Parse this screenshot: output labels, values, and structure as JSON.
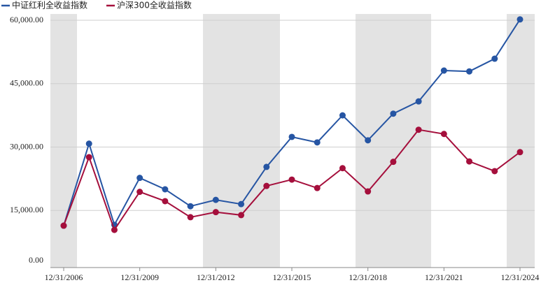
{
  "chart_data": {
    "type": "line",
    "categories": [
      "12/31/2006",
      null,
      null,
      "12/31/2009",
      null,
      null,
      "12/31/2012",
      null,
      null,
      "12/31/2015",
      null,
      null,
      "12/31/2018",
      null,
      null,
      "12/31/2021",
      null,
      null,
      "12/31/2024"
    ],
    "series": [
      {
        "name": "中证红利全收益指数",
        "color": "#2655a3",
        "values": [
          11400,
          30800,
          11600,
          22700,
          20000,
          16000,
          17500,
          16500,
          25300,
          32400,
          31100,
          37500,
          31600,
          37900,
          40800,
          48100,
          47900,
          50900,
          60200
        ]
      },
      {
        "name": "沪深300全收益指数",
        "color": "#a50f3c",
        "values": [
          11400,
          27600,
          10400,
          19400,
          17200,
          13400,
          14600,
          13900,
          20800,
          22300,
          20300,
          25000,
          19500,
          26500,
          34100,
          33100,
          26600,
          24300,
          28800
        ]
      }
    ],
    "ylim": [
      0,
      60000
    ],
    "yticks": [
      {
        "value": 0,
        "label": "0.00"
      },
      {
        "value": 15000,
        "label": "15,000.00"
      },
      {
        "value": 30000,
        "label": "30,000.00"
      },
      {
        "value": 45000,
        "label": "45,000.00"
      },
      {
        "value": 60000,
        "label": "60,000.00"
      }
    ],
    "grid": true,
    "legend": "top-left"
  }
}
